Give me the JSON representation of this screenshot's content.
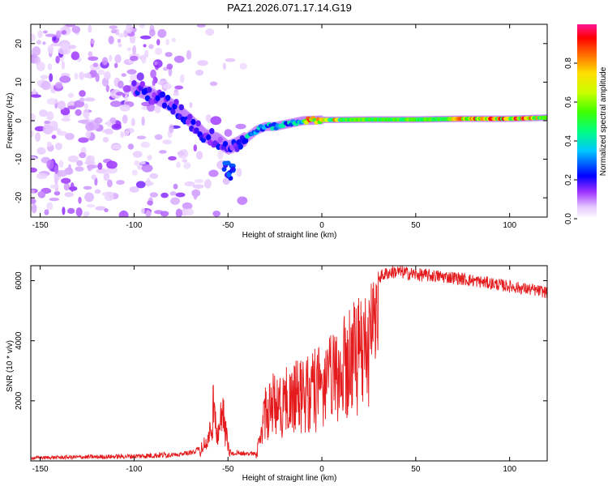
{
  "title": "PAZ1.2026.071.17.14.G19",
  "chart_data": [
    {
      "type": "heatmap",
      "name": "spectrogram",
      "xlabel": "Height of straight line (km)",
      "ylabel": "Frequency (Hz)",
      "xlim": [
        -155,
        120
      ],
      "ylim": [
        -25,
        25
      ],
      "xticks": [
        -150,
        -100,
        -50,
        0,
        50,
        100
      ],
      "yticks": [
        -20,
        -10,
        0,
        10,
        20
      ],
      "colorbar": {
        "label": "Normalized spectral amplitude",
        "range": [
          0.0,
          1.0
        ],
        "ticks": [
          "0.0",
          "0.2",
          "0.4",
          "0.6",
          "0.8"
        ]
      },
      "ridge": {
        "height_km": [
          -100,
          -90,
          -80,
          -70,
          -62,
          -55,
          -50,
          -45,
          -40,
          -35,
          -30,
          -25,
          -20,
          -15,
          -10,
          0,
          25,
          50,
          75,
          100,
          120
        ],
        "frequency_hz": [
          8.5,
          6.5,
          4,
          0,
          -4,
          -5,
          -7,
          -6,
          -4.5,
          -2.5,
          -1.5,
          -1.5,
          -1,
          -0.5,
          0,
          0.2,
          0.3,
          0.3,
          0.5,
          0.5,
          0.8
        ]
      },
      "noise_region_km": [
        -155,
        -70
      ]
    },
    {
      "type": "line",
      "name": "snr",
      "xlabel": "Height of straight line (km)",
      "ylabel": "SNR (10 * v/v)",
      "xlim": [
        -155,
        120
      ],
      "ylim": [
        0,
        6500
      ],
      "xticks": [
        -150,
        -100,
        -50,
        0,
        50,
        100
      ],
      "yticks": [
        2000,
        4000,
        6000
      ],
      "color": "#e41a1c",
      "envelope": {
        "x": [
          -155,
          -100,
          -80,
          -70,
          -65,
          -60,
          -58,
          -55,
          -52,
          -50,
          -48,
          -45,
          -40,
          -35,
          -32,
          -30,
          -28,
          -25,
          -20,
          -15,
          -10,
          -5,
          0,
          5,
          10,
          15,
          20,
          25,
          30,
          35,
          40,
          45,
          50,
          60,
          70,
          80,
          90,
          100,
          110,
          120
        ],
        "y": [
          120,
          180,
          250,
          350,
          500,
          1200,
          2600,
          1800,
          2200,
          700,
          300,
          350,
          300,
          300,
          1500,
          2700,
          2800,
          3000,
          3100,
          3300,
          3500,
          3700,
          3900,
          4200,
          4600,
          5200,
          5600,
          5900,
          6200,
          6350,
          6400,
          6350,
          6300,
          6250,
          6200,
          6100,
          6000,
          5900,
          5800,
          5700
        ]
      }
    }
  ]
}
